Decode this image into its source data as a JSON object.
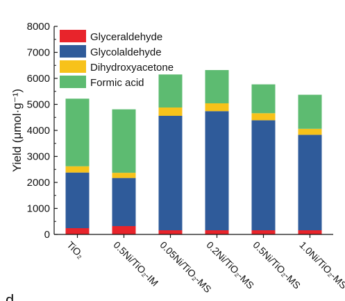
{
  "chart_data": {
    "type": "bar",
    "stacked": true,
    "ylabel": "Yield (μmol·g⁻¹)",
    "ylim": [
      0,
      8000
    ],
    "yticks": [
      0,
      1000,
      2000,
      3000,
      4000,
      5000,
      6000,
      7000,
      8000
    ],
    "categories": [
      "TiO₂",
      "0.5Ni/TiO₂-IM",
      "0.05Ni/TiO₂-MS",
      "0.2Ni/TiO₂-MS",
      "0.5Ni/TiO₂-MS",
      "1.0Ni/TiO₂-MS"
    ],
    "series": [
      {
        "name": "Glyceraldehyde",
        "color": "#e8242b",
        "values": [
          240,
          320,
          160,
          160,
          160,
          160
        ]
      },
      {
        "name": "Glycolaldehyde",
        "color": "#2f5b9a",
        "values": [
          2140,
          1850,
          4400,
          4580,
          4230,
          3670
        ]
      },
      {
        "name": "Dihydroxyacetone",
        "color": "#f7c21a",
        "values": [
          240,
          200,
          320,
          300,
          270,
          230
        ]
      },
      {
        "name": "Formic acid",
        "color": "#5dbb71",
        "values": [
          2600,
          2440,
          1270,
          1280,
          1110,
          1310
        ]
      }
    ],
    "legend_position": "top-left",
    "panel_letter": "d"
  }
}
